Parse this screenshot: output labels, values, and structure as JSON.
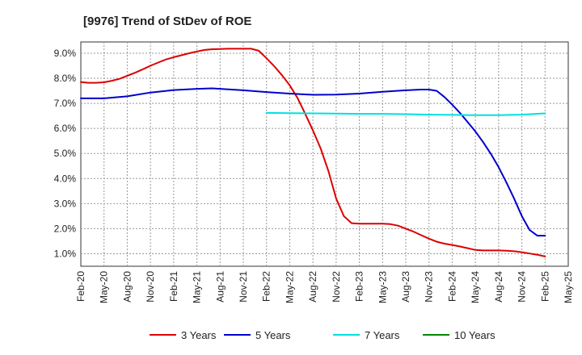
{
  "chart_data": {
    "type": "line",
    "title": "[9976]  Trend of StDev of ROE",
    "xlabel": "",
    "ylabel": "",
    "grid": true,
    "legend_position": "bottom",
    "x_ticks": [
      "Feb-20",
      "May-20",
      "Aug-20",
      "Nov-20",
      "Feb-21",
      "May-21",
      "Aug-21",
      "Nov-21",
      "Feb-22",
      "May-22",
      "Aug-22",
      "Nov-22",
      "Feb-23",
      "May-23",
      "Aug-23",
      "Nov-23",
      "Feb-24",
      "May-24",
      "Aug-24",
      "Nov-24",
      "Feb-25",
      "May-25"
    ],
    "y_ticks": [
      "1.0%",
      "2.0%",
      "3.0%",
      "4.0%",
      "5.0%",
      "6.0%",
      "7.0%",
      "8.0%",
      "9.0%"
    ],
    "y_tick_values": [
      1,
      2,
      3,
      4,
      5,
      6,
      7,
      8,
      9
    ],
    "ylim": [
      0.5,
      9.45
    ],
    "series": [
      {
        "name": "3 Years",
        "color": "#dd0000",
        "points": [
          [
            "Feb-20",
            7.85
          ],
          [
            "Mar-20",
            7.82
          ],
          [
            "Apr-20",
            7.82
          ],
          [
            "May-20",
            7.84
          ],
          [
            "Jun-20",
            7.9
          ],
          [
            "Jul-20",
            7.98
          ],
          [
            "Aug-20",
            8.1
          ],
          [
            "Sep-20",
            8.22
          ],
          [
            "Oct-20",
            8.36
          ],
          [
            "Nov-20",
            8.5
          ],
          [
            "Dec-20",
            8.63
          ],
          [
            "Jan-21",
            8.75
          ],
          [
            "Feb-21",
            8.84
          ],
          [
            "Mar-21",
            8.92
          ],
          [
            "Apr-21",
            9.0
          ],
          [
            "May-21",
            9.07
          ],
          [
            "Jun-21",
            9.13
          ],
          [
            "Jul-21",
            9.16
          ],
          [
            "Aug-21",
            9.17
          ],
          [
            "Sep-21",
            9.18
          ],
          [
            "Oct-21",
            9.18
          ],
          [
            "Nov-21",
            9.18
          ],
          [
            "Dec-21",
            9.18
          ],
          [
            "Jan-22",
            9.1
          ],
          [
            "Feb-22",
            8.8
          ],
          [
            "Mar-22",
            8.48
          ],
          [
            "Apr-22",
            8.12
          ],
          [
            "May-22",
            7.72
          ],
          [
            "Jun-22",
            7.22
          ],
          [
            "Jul-22",
            6.58
          ],
          [
            "Aug-22",
            5.92
          ],
          [
            "Sep-22",
            5.2
          ],
          [
            "Oct-22",
            4.3
          ],
          [
            "Nov-22",
            3.2
          ],
          [
            "Dec-22",
            2.5
          ],
          [
            "Jan-23",
            2.22
          ],
          [
            "Feb-23",
            2.2
          ],
          [
            "Mar-23",
            2.2
          ],
          [
            "Apr-23",
            2.2
          ],
          [
            "May-23",
            2.2
          ],
          [
            "Jun-23",
            2.18
          ],
          [
            "Jul-23",
            2.12
          ],
          [
            "Aug-23",
            2.0
          ],
          [
            "Sep-23",
            1.88
          ],
          [
            "Oct-23",
            1.74
          ],
          [
            "Nov-23",
            1.6
          ],
          [
            "Dec-23",
            1.48
          ],
          [
            "Jan-24",
            1.4
          ],
          [
            "Feb-24",
            1.35
          ],
          [
            "Mar-24",
            1.29
          ],
          [
            "Apr-24",
            1.22
          ],
          [
            "May-24",
            1.15
          ],
          [
            "Jun-24",
            1.13
          ],
          [
            "Jul-24",
            1.13
          ],
          [
            "Aug-24",
            1.13
          ],
          [
            "Sep-24",
            1.12
          ],
          [
            "Oct-24",
            1.1
          ],
          [
            "Nov-24",
            1.06
          ],
          [
            "Dec-24",
            1.01
          ],
          [
            "Jan-25",
            0.96
          ],
          [
            "Feb-25",
            0.89
          ]
        ]
      },
      {
        "name": "5 Years",
        "color": "#0000cc",
        "points": [
          [
            "Feb-20",
            7.2
          ],
          [
            "May-20",
            7.2
          ],
          [
            "Aug-20",
            7.28
          ],
          [
            "Nov-20",
            7.43
          ],
          [
            "Feb-21",
            7.53
          ],
          [
            "May-21",
            7.58
          ],
          [
            "Jul-21",
            7.6
          ],
          [
            "Aug-21",
            7.58
          ],
          [
            "Nov-21",
            7.52
          ],
          [
            "Feb-22",
            7.45
          ],
          [
            "May-22",
            7.39
          ],
          [
            "Aug-22",
            7.34
          ],
          [
            "Nov-22",
            7.35
          ],
          [
            "Feb-23",
            7.39
          ],
          [
            "May-23",
            7.46
          ],
          [
            "Aug-23",
            7.52
          ],
          [
            "Oct-23",
            7.55
          ],
          [
            "Nov-23",
            7.55
          ],
          [
            "Dec-23",
            7.5
          ],
          [
            "Jan-24",
            7.25
          ],
          [
            "Feb-24",
            6.95
          ],
          [
            "Mar-24",
            6.62
          ],
          [
            "Apr-24",
            6.25
          ],
          [
            "May-24",
            5.88
          ],
          [
            "Jun-24",
            5.45
          ],
          [
            "Jul-24",
            4.98
          ],
          [
            "Aug-24",
            4.45
          ],
          [
            "Sep-24",
            3.85
          ],
          [
            "Oct-24",
            3.2
          ],
          [
            "Nov-24",
            2.5
          ],
          [
            "Dec-24",
            1.95
          ],
          [
            "Jan-25",
            1.72
          ],
          [
            "Feb-25",
            1.72
          ]
        ]
      },
      {
        "name": "7 Years",
        "color": "#00e0e0",
        "points": [
          [
            "Feb-22",
            6.62
          ],
          [
            "May-22",
            6.61
          ],
          [
            "Aug-22",
            6.6
          ],
          [
            "Nov-22",
            6.59
          ],
          [
            "Feb-23",
            6.58
          ],
          [
            "May-23",
            6.58
          ],
          [
            "Aug-23",
            6.57
          ],
          [
            "Nov-23",
            6.55
          ],
          [
            "Feb-24",
            6.54
          ],
          [
            "May-24",
            6.53
          ],
          [
            "Aug-24",
            6.53
          ],
          [
            "Nov-24",
            6.55
          ],
          [
            "Feb-25",
            6.6
          ]
        ]
      },
      {
        "name": "10 Years",
        "color": "#008800",
        "points": []
      }
    ]
  }
}
